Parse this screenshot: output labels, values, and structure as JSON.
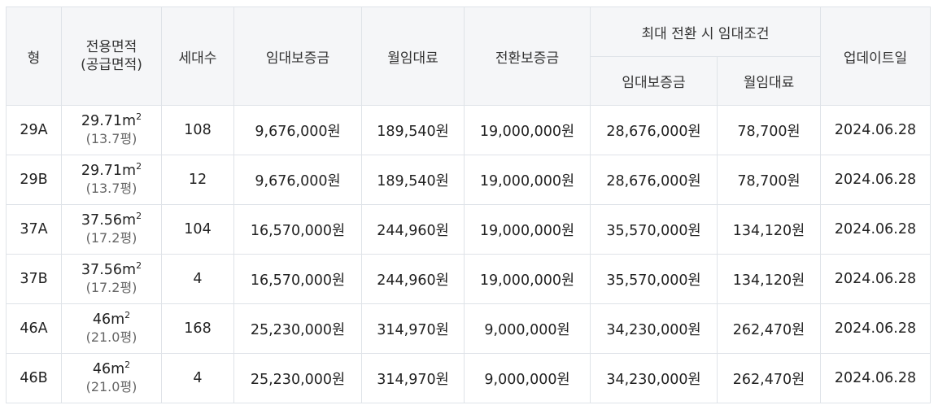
{
  "headers": {
    "type": "형",
    "area_line1": "전용면적",
    "area_line2": "(공급면적)",
    "households": "세대수",
    "deposit": "임대보증금",
    "monthly_rent": "월임대료",
    "conversion_deposit": "전환보증금",
    "max_conversion_group": "최대 전환 시 임대조건",
    "max_deposit": "임대보증금",
    "max_monthly_rent": "월임대료",
    "update_date": "업데이트일"
  },
  "rows": [
    {
      "type": "29A",
      "area": "29.71m",
      "area_unit_sup": "2",
      "supply_area": "(13.7평)",
      "households": "108",
      "deposit": "9,676,000원",
      "monthly_rent": "189,540원",
      "conversion_deposit": "19,000,000원",
      "max_deposit": "28,676,000원",
      "max_monthly_rent": "78,700원",
      "update_date": "2024.06.28"
    },
    {
      "type": "29B",
      "area": "29.71m",
      "area_unit_sup": "2",
      "supply_area": "(13.7평)",
      "households": "12",
      "deposit": "9,676,000원",
      "monthly_rent": "189,540원",
      "conversion_deposit": "19,000,000원",
      "max_deposit": "28,676,000원",
      "max_monthly_rent": "78,700원",
      "update_date": "2024.06.28"
    },
    {
      "type": "37A",
      "area": "37.56m",
      "area_unit_sup": "2",
      "supply_area": "(17.2평)",
      "households": "104",
      "deposit": "16,570,000원",
      "monthly_rent": "244,960원",
      "conversion_deposit": "19,000,000원",
      "max_deposit": "35,570,000원",
      "max_monthly_rent": "134,120원",
      "update_date": "2024.06.28"
    },
    {
      "type": "37B",
      "area": "37.56m",
      "area_unit_sup": "2",
      "supply_area": "(17.2평)",
      "households": "4",
      "deposit": "16,570,000원",
      "monthly_rent": "244,960원",
      "conversion_deposit": "19,000,000원",
      "max_deposit": "35,570,000원",
      "max_monthly_rent": "134,120원",
      "update_date": "2024.06.28"
    },
    {
      "type": "46A",
      "area": "46m",
      "area_unit_sup": "2",
      "supply_area": "(21.0평)",
      "households": "168",
      "deposit": "25,230,000원",
      "monthly_rent": "314,970원",
      "conversion_deposit": "9,000,000원",
      "max_deposit": "34,230,000원",
      "max_monthly_rent": "262,470원",
      "update_date": "2024.06.28"
    },
    {
      "type": "46B",
      "area": "46m",
      "area_unit_sup": "2",
      "supply_area": "(21.0평)",
      "households": "4",
      "deposit": "25,230,000원",
      "monthly_rent": "314,970원",
      "conversion_deposit": "9,000,000원",
      "max_deposit": "34,230,000원",
      "max_monthly_rent": "262,470원",
      "update_date": "2024.06.28"
    }
  ]
}
